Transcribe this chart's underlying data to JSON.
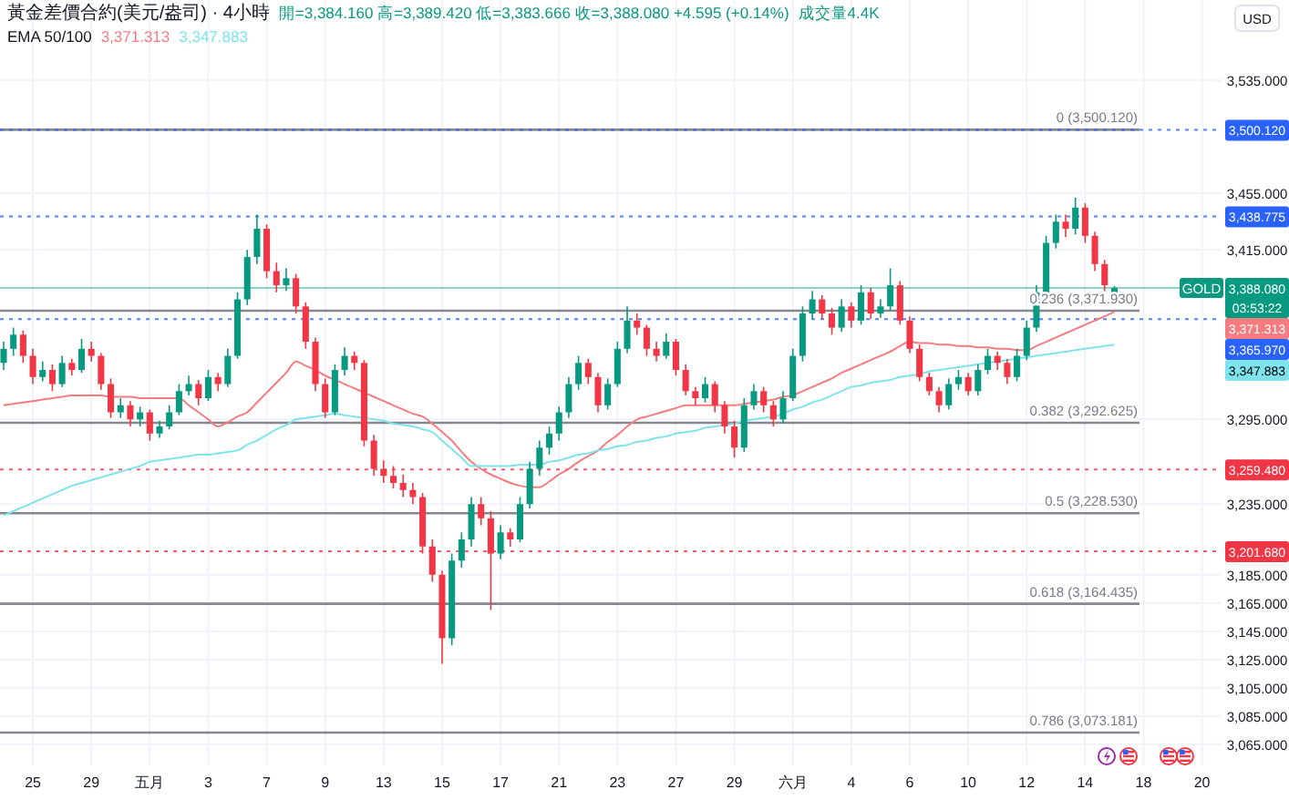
{
  "chart_data": {
    "type": "candlestick",
    "title": "黃金差價合約(美元/盎司) · 4小時",
    "subtitle": "EMA 50/100",
    "ylabel": "USD",
    "categories": [
      null,
      null,
      null,
      "25",
      null,
      null,
      null,
      null,
      null,
      "29",
      null,
      null,
      null,
      null,
      null,
      "五月",
      null,
      null,
      null,
      null,
      null,
      "3",
      null,
      null,
      null,
      null,
      null,
      "7",
      null,
      null,
      null,
      null,
      null,
      "9",
      null,
      null,
      null,
      null,
      null,
      "13",
      null,
      null,
      null,
      null,
      null,
      "15",
      null,
      null,
      null,
      null,
      null,
      "17",
      null,
      null,
      null,
      null,
      null,
      "21",
      null,
      null,
      null,
      null,
      null,
      "23",
      null,
      null,
      null,
      null,
      null,
      "27",
      null,
      null,
      null,
      null,
      null,
      "29",
      null,
      null,
      null,
      null,
      null,
      "六月",
      null,
      null,
      null,
      null,
      null,
      "4",
      null,
      null,
      null,
      null,
      null,
      "6",
      null,
      null,
      null,
      null,
      null,
      "10",
      null,
      null,
      null,
      null,
      null,
      "12",
      null,
      null,
      null,
      null,
      null,
      "14",
      null,
      null,
      null,
      null,
      null,
      "18",
      null,
      null,
      null,
      null,
      null,
      "20",
      null,
      null
    ],
    "ohlc": [
      [
        3335,
        3350,
        3330,
        3345
      ],
      [
        3345,
        3360,
        3340,
        3355
      ],
      [
        3355,
        3358,
        3335,
        3340
      ],
      [
        3340,
        3345,
        3320,
        3325
      ],
      [
        3325,
        3336,
        3322,
        3330
      ],
      [
        3330,
        3334,
        3315,
        3320
      ],
      [
        3320,
        3340,
        3318,
        3335
      ],
      [
        3335,
        3338,
        3326,
        3330
      ],
      [
        3330,
        3352,
        3328,
        3345
      ],
      [
        3345,
        3350,
        3336,
        3340
      ],
      [
        3340,
        3342,
        3316,
        3320
      ],
      [
        3320,
        3324,
        3296,
        3300
      ],
      [
        3300,
        3310,
        3296,
        3305
      ],
      [
        3305,
        3308,
        3290,
        3295
      ],
      [
        3295,
        3304,
        3290,
        3300
      ],
      [
        3300,
        3302,
        3280,
        3285
      ],
      [
        3285,
        3294,
        3282,
        3290
      ],
      [
        3290,
        3305,
        3288,
        3300
      ],
      [
        3300,
        3320,
        3298,
        3315
      ],
      [
        3315,
        3326,
        3312,
        3320
      ],
      [
        3320,
        3323,
        3305,
        3310
      ],
      [
        3310,
        3330,
        3308,
        3325
      ],
      [
        3325,
        3328,
        3315,
        3320
      ],
      [
        3320,
        3345,
        3318,
        3340
      ],
      [
        3340,
        3385,
        3338,
        3380
      ],
      [
        3380,
        3415,
        3376,
        3410
      ],
      [
        3410,
        3440,
        3405,
        3430
      ],
      [
        3430,
        3433,
        3395,
        3400
      ],
      [
        3400,
        3406,
        3385,
        3390
      ],
      [
        3390,
        3402,
        3386,
        3395
      ],
      [
        3395,
        3398,
        3370,
        3375
      ],
      [
        3375,
        3378,
        3345,
        3350
      ],
      [
        3350,
        3353,
        3315,
        3320
      ],
      [
        3320,
        3324,
        3296,
        3300
      ],
      [
        3300,
        3334,
        3298,
        3330
      ],
      [
        3330,
        3346,
        3326,
        3340
      ],
      [
        3340,
        3343,
        3330,
        3335
      ],
      [
        3335,
        3337,
        3276,
        3280
      ],
      [
        3280,
        3284,
        3255,
        3260
      ],
      [
        3260,
        3266,
        3250,
        3255
      ],
      [
        3255,
        3262,
        3246,
        3250
      ],
      [
        3250,
        3256,
        3240,
        3245
      ],
      [
        3245,
        3250,
        3235,
        3240
      ],
      [
        3240,
        3243,
        3200,
        3205
      ],
      [
        3205,
        3210,
        3180,
        3185
      ],
      [
        3185,
        3188,
        3122,
        3140
      ],
      [
        3140,
        3200,
        3135,
        3195
      ],
      [
        3195,
        3215,
        3190,
        3210
      ],
      [
        3210,
        3240,
        3205,
        3235
      ],
      [
        3235,
        3240,
        3220,
        3225
      ],
      [
        3225,
        3230,
        3160,
        3200
      ],
      [
        3200,
        3220,
        3196,
        3215
      ],
      [
        3215,
        3218,
        3205,
        3210
      ],
      [
        3210,
        3240,
        3208,
        3235
      ],
      [
        3235,
        3265,
        3232,
        3260
      ],
      [
        3260,
        3280,
        3255,
        3275
      ],
      [
        3275,
        3290,
        3270,
        3285
      ],
      [
        3285,
        3304,
        3280,
        3300
      ],
      [
        3300,
        3325,
        3296,
        3320
      ],
      [
        3320,
        3340,
        3316,
        3335
      ],
      [
        3335,
        3338,
        3320,
        3325
      ],
      [
        3325,
        3328,
        3300,
        3305
      ],
      [
        3305,
        3324,
        3302,
        3320
      ],
      [
        3320,
        3350,
        3318,
        3345
      ],
      [
        3345,
        3375,
        3342,
        3365
      ],
      [
        3365,
        3370,
        3355,
        3360
      ],
      [
        3360,
        3362,
        3340,
        3345
      ],
      [
        3345,
        3350,
        3336,
        3340
      ],
      [
        3340,
        3356,
        3338,
        3350
      ],
      [
        3350,
        3352,
        3326,
        3330
      ],
      [
        3330,
        3334,
        3312,
        3315
      ],
      [
        3315,
        3318,
        3305,
        3310
      ],
      [
        3310,
        3325,
        3307,
        3320
      ],
      [
        3320,
        3322,
        3300,
        3305
      ],
      [
        3305,
        3308,
        3285,
        3290
      ],
      [
        3290,
        3294,
        3268,
        3275
      ],
      [
        3275,
        3310,
        3272,
        3305
      ],
      [
        3305,
        3320,
        3302,
        3315
      ],
      [
        3315,
        3318,
        3300,
        3305
      ],
      [
        3305,
        3308,
        3290,
        3295
      ],
      [
        3295,
        3315,
        3292,
        3310
      ],
      [
        3310,
        3345,
        3308,
        3340
      ],
      [
        3340,
        3375,
        3336,
        3370
      ],
      [
        3370,
        3386,
        3366,
        3380
      ],
      [
        3380,
        3383,
        3366,
        3370
      ],
      [
        3370,
        3374,
        3355,
        3360
      ],
      [
        3360,
        3380,
        3357,
        3375
      ],
      [
        3375,
        3378,
        3360,
        3365
      ],
      [
        3365,
        3390,
        3362,
        3385
      ],
      [
        3385,
        3388,
        3366,
        3370
      ],
      [
        3370,
        3380,
        3367,
        3375
      ],
      [
        3375,
        3402,
        3372,
        3390
      ],
      [
        3390,
        3393,
        3362,
        3365
      ],
      [
        3365,
        3368,
        3342,
        3345
      ],
      [
        3345,
        3348,
        3322,
        3325
      ],
      [
        3325,
        3328,
        3312,
        3315
      ],
      [
        3315,
        3318,
        3300,
        3305
      ],
      [
        3305,
        3324,
        3302,
        3320
      ],
      [
        3320,
        3330,
        3316,
        3325
      ],
      [
        3325,
        3328,
        3312,
        3315
      ],
      [
        3315,
        3334,
        3312,
        3330
      ],
      [
        3330,
        3345,
        3327,
        3340
      ],
      [
        3340,
        3343,
        3330,
        3335
      ],
      [
        3335,
        3338,
        3320,
        3325
      ],
      [
        3325,
        3345,
        3322,
        3340
      ],
      [
        3340,
        3365,
        3337,
        3360
      ],
      [
        3360,
        3390,
        3357,
        3385
      ],
      [
        3385,
        3425,
        3382,
        3420
      ],
      [
        3420,
        3440,
        3416,
        3435
      ],
      [
        3435,
        3440,
        3424,
        3430
      ],
      [
        3430,
        3452,
        3426,
        3445
      ],
      [
        3445,
        3448,
        3420,
        3425
      ],
      [
        3425,
        3428,
        3400,
        3405
      ],
      [
        3405,
        3408,
        3384,
        3390
      ],
      [
        3384.16,
        3389.42,
        3383.666,
        3388.08
      ],
      null,
      null,
      null,
      null,
      null,
      null,
      null,
      null,
      null,
      null,
      null
    ],
    "series": [
      {
        "type": "line",
        "color": "#f77c80",
        "values": [
          3305,
          3306,
          3307,
          3308,
          3309,
          3310,
          3311,
          3312,
          3312,
          3312,
          3312,
          3311,
          3311,
          3311,
          3310,
          3310,
          3310,
          3310,
          3310,
          3305,
          3300,
          3295,
          3290,
          3293,
          3297,
          3300,
          3307,
          3314,
          3321,
          3328,
          3336,
          3333,
          3330,
          3326,
          3323,
          3320,
          3317,
          3314,
          3311,
          3308,
          3305,
          3302,
          3299,
          3297,
          3292,
          3286,
          3280,
          3272,
          3265,
          3260,
          3256,
          3253,
          3250,
          3248,
          3247,
          3247,
          3251,
          3256,
          3260,
          3265,
          3269,
          3273,
          3279,
          3284,
          3290,
          3295,
          3297,
          3299,
          3301,
          3303,
          3305,
          3305,
          3305,
          3305,
          3305,
          3305,
          3306,
          3307,
          3308,
          3309,
          3311,
          3312,
          3315,
          3318,
          3321,
          3324,
          3328,
          3331,
          3334,
          3337,
          3340,
          3343,
          3347,
          3350,
          3349,
          3349,
          3348,
          3348,
          3347,
          3347,
          3346,
          3346,
          3345,
          3345,
          3344,
          3344,
          3347,
          3350,
          3353,
          3356,
          3359,
          3362,
          3365,
          3368,
          3371.313,
          null,
          null,
          null,
          null,
          null,
          null,
          null,
          null,
          null,
          null,
          null
        ]
      },
      {
        "type": "line",
        "color": "#7fe3ee",
        "values": [
          3227,
          3230,
          3233,
          3236,
          3239,
          3242,
          3245,
          3248,
          3250,
          3252,
          3254,
          3256,
          3258,
          3260,
          3262,
          3265,
          3266,
          3267,
          3268,
          3269,
          3270,
          3270,
          3271,
          3272,
          3273,
          3277,
          3280,
          3284,
          3288,
          3291,
          3295,
          3296,
          3297,
          3298,
          3299,
          3298,
          3297,
          3296,
          3295,
          3294,
          3292,
          3291,
          3290,
          3288,
          3286,
          3280,
          3274,
          3268,
          3262,
          3262,
          3262,
          3262,
          3262,
          3263,
          3263,
          3263,
          3265,
          3266,
          3268,
          3270,
          3271,
          3273,
          3274,
          3276,
          3277,
          3279,
          3280,
          3282,
          3283,
          3285,
          3286,
          3287,
          3289,
          3290,
          3291,
          3292,
          3294,
          3295,
          3296,
          3297,
          3299,
          3302,
          3304,
          3307,
          3309,
          3312,
          3315,
          3318,
          3319,
          3321,
          3322,
          3323,
          3325,
          3326,
          3327,
          3329,
          3330,
          3331,
          3332,
          3333,
          3334,
          3335,
          3336,
          3337,
          3338,
          3339,
          3340,
          3341,
          3342,
          3343,
          3344,
          3345,
          3346,
          3347,
          3347.883,
          null,
          null,
          null,
          null,
          null,
          null,
          null,
          null,
          null,
          null,
          null
        ]
      }
    ],
    "ylim": [
      3050,
      3592
    ],
    "yticks": [
      {
        "value": 3535,
        "label": "3,535.000"
      },
      {
        "value": 3455,
        "label": "3,455.000"
      },
      {
        "value": 3415,
        "label": "3,415.000"
      },
      {
        "value": 3295,
        "label": "3,295.000"
      },
      {
        "value": 3235,
        "label": "3,235.000"
      },
      {
        "value": 3185,
        "label": "3,185.000"
      },
      {
        "value": 3165,
        "label": "3,165.000"
      },
      {
        "value": 3145,
        "label": "3,145.000"
      },
      {
        "value": 3125,
        "label": "3,125.000"
      },
      {
        "value": 3105,
        "label": "3,105.000"
      },
      {
        "value": 3085,
        "label": "3,085.000"
      },
      {
        "value": 3065,
        "label": "3,065.000"
      }
    ],
    "grid": true,
    "ref_lines": [
      {
        "axis": "y",
        "value": 3500.12,
        "label": "0 (3,500.120)",
        "color": "#787b86",
        "line_style": "solid"
      },
      {
        "axis": "y",
        "value": 3371.93,
        "label": "0.236 (3,371.930)",
        "color": "#787b86",
        "line_style": "solid"
      },
      {
        "axis": "y",
        "value": 3292.625,
        "label": "0.382 (3,292.625)",
        "color": "#787b86",
        "line_style": "solid"
      },
      {
        "axis": "y",
        "value": 3228.53,
        "label": "0.5 (3,228.530)",
        "color": "#787b86",
        "line_style": "solid"
      },
      {
        "axis": "y",
        "value": 3164.435,
        "label": "0.618 (3,164.435)",
        "color": "#787b86",
        "line_style": "solid"
      },
      {
        "axis": "y",
        "value": 3073.181,
        "label": "0.786 (3,073.181)",
        "color": "#787b86",
        "line_style": "solid"
      },
      {
        "axis": "y",
        "value": 3388.08,
        "label": "3,388.080",
        "color": "#089981",
        "line_style": "solid"
      },
      {
        "axis": "y",
        "value": 3500.12,
        "label": "3,500.120",
        "color": "#2962ff",
        "line_style": "dotted"
      },
      {
        "axis": "y",
        "value": 3438.775,
        "label": "3,438.775",
        "color": "#2962ff",
        "line_style": "dotted"
      },
      {
        "axis": "y",
        "value": 3365.97,
        "label": "3,365.970",
        "color": "#2962ff",
        "line_style": "dotted"
      },
      {
        "axis": "y",
        "value": 3259.48,
        "label": "3,259.480",
        "color": "#f23645",
        "line_style": "dotted"
      },
      {
        "axis": "y",
        "value": 3201.68,
        "label": "3,201.680",
        "color": "#f23645",
        "line_style": "dotted"
      }
    ],
    "annotations": [
      "開=3,384.160 高=3,389.420 低=3,383.666 收=3,388.080 +4.595 (+0.14%)",
      "成交量4.4K",
      "GOLD",
      "03:53:22",
      "3,371.313",
      "3,347.883"
    ]
  }
}
